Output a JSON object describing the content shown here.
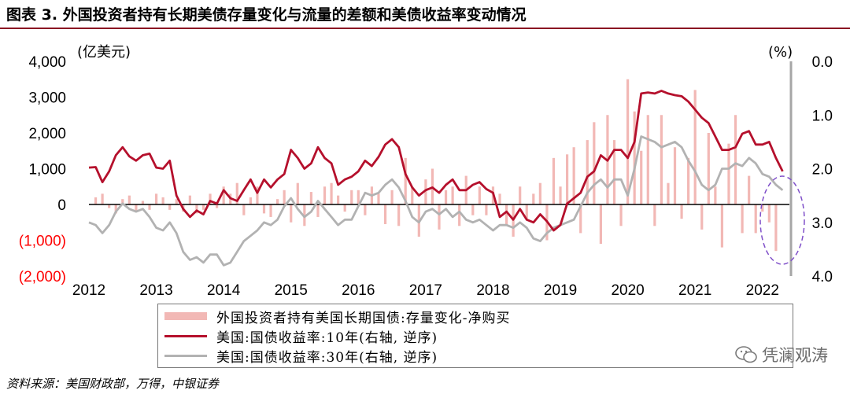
{
  "figure": {
    "title": "图表 3. 外国投资者持有长期美债存量变化与流量的差额和美债收益率变动情况",
    "source": "资料来源：美国财政部，万得，中银证券",
    "watermark": "凭澜观涛"
  },
  "colors": {
    "bars": "#f2b8b5",
    "line_10y": "#b5102c",
    "line_30y": "#b2b2b2",
    "title_rule": "#8a0f22",
    "negative_tick": "#ff0000",
    "right_axis": "#a6a6a6",
    "ellipse": "#7f4fc9"
  },
  "chart_data": {
    "type": "bar",
    "left_axis": {
      "unit_label": "(亿美元)",
      "ylim": [
        -2000,
        4000
      ],
      "ticks": [
        {
          "value": 4000,
          "label": "4,000"
        },
        {
          "value": 3000,
          "label": "3,000"
        },
        {
          "value": 2000,
          "label": "2,000"
        },
        {
          "value": 1000,
          "label": "1,000"
        },
        {
          "value": 0,
          "label": "0"
        },
        {
          "value": -1000,
          "label": "(1,000)"
        },
        {
          "value": -2000,
          "label": "(2,000)"
        }
      ]
    },
    "right_axis": {
      "unit_label": "(%)",
      "inverted": true,
      "ylim": [
        0.0,
        4.0
      ],
      "ticks": [
        {
          "value": 0.0,
          "label": "0.0"
        },
        {
          "value": 1.0,
          "label": "1.0"
        },
        {
          "value": 2.0,
          "label": "2.0"
        },
        {
          "value": 3.0,
          "label": "3.0"
        },
        {
          "value": 4.0,
          "label": "4.0"
        }
      ]
    },
    "x_axis": {
      "range": [
        2012.0,
        2022.4
      ],
      "tick_labels": [
        "2012",
        "2013",
        "2014",
        "2015",
        "2016",
        "2017",
        "2018",
        "2019",
        "2020",
        "2021",
        "2022"
      ]
    },
    "legend": [
      "外国投资者持有美国长期国债:存量变化-净购买",
      "美国:国债收益率:10年(右轴, 逆序)",
      "美国:国债收益率:30年(右轴, 逆序)"
    ],
    "series": [
      {
        "name": "外国投资者持有美国长期国债:存量变化-净购买",
        "type": "bar",
        "axis": "left",
        "x": [
          2012.1,
          2012.2,
          2012.3,
          2012.4,
          2012.5,
          2012.6,
          2012.7,
          2012.8,
          2012.9,
          2013.0,
          2013.1,
          2013.2,
          2013.3,
          2013.4,
          2013.5,
          2013.6,
          2013.7,
          2013.8,
          2013.9,
          2014.0,
          2014.1,
          2014.2,
          2014.3,
          2014.4,
          2014.5,
          2014.6,
          2014.7,
          2014.8,
          2014.9,
          2015.0,
          2015.1,
          2015.2,
          2015.3,
          2015.4,
          2015.5,
          2015.6,
          2015.7,
          2015.8,
          2015.9,
          2016.0,
          2016.1,
          2016.2,
          2016.3,
          2016.4,
          2016.5,
          2016.6,
          2016.7,
          2016.8,
          2016.9,
          2017.0,
          2017.1,
          2017.2,
          2017.3,
          2017.4,
          2017.5,
          2017.6,
          2017.7,
          2017.8,
          2017.9,
          2018.0,
          2018.1,
          2018.2,
          2018.3,
          2018.4,
          2018.5,
          2018.6,
          2018.7,
          2018.8,
          2018.9,
          2019.0,
          2019.1,
          2019.2,
          2019.3,
          2019.4,
          2019.5,
          2019.6,
          2019.7,
          2019.8,
          2019.9,
          2020.0,
          2020.1,
          2020.2,
          2020.3,
          2020.4,
          2020.5,
          2020.6,
          2020.7,
          2020.8,
          2020.9,
          2021.0,
          2021.1,
          2021.2,
          2021.3,
          2021.4,
          2021.5,
          2021.6,
          2021.7,
          2021.8,
          2021.9,
          2022.0,
          2022.1,
          2022.2
        ],
        "values": [
          200,
          300,
          -100,
          -250,
          150,
          250,
          -200,
          100,
          -150,
          300,
          200,
          -150,
          150,
          -200,
          250,
          -250,
          -150,
          300,
          -100,
          500,
          300,
          600,
          -300,
          200,
          500,
          -250,
          -350,
          150,
          400,
          -500,
          600,
          -600,
          350,
          -350,
          500,
          600,
          250,
          -200,
          400,
          400,
          -300,
          500,
          300,
          -550,
          400,
          -600,
          1300,
          500,
          -900,
          700,
          1000,
          -700,
          400,
          500,
          -600,
          800,
          -300,
          500,
          -300,
          500,
          300,
          -600,
          -900,
          500,
          -400,
          300,
          600,
          -1000,
          1300,
          500,
          1400,
          1600,
          -800,
          1800,
          2300,
          -1100,
          2500,
          1800,
          -600,
          3500,
          2600,
          1500,
          2500,
          -600,
          2500,
          600,
          1600,
          -400,
          1300,
          3200,
          -700,
          2000,
          500,
          -1200,
          1700,
          2500,
          -800,
          800,
          -800,
          -200,
          -500,
          -1300
        ]
      },
      {
        "name": "美国:国债收益率:10年(右轴, 逆序)",
        "type": "line",
        "axis": "right",
        "x": [
          2012.0,
          2012.1,
          2012.2,
          2012.3,
          2012.4,
          2012.5,
          2012.6,
          2012.7,
          2012.8,
          2012.9,
          2013.0,
          2013.1,
          2013.2,
          2013.3,
          2013.4,
          2013.5,
          2013.6,
          2013.7,
          2013.8,
          2013.9,
          2014.0,
          2014.1,
          2014.2,
          2014.3,
          2014.4,
          2014.5,
          2014.6,
          2014.7,
          2014.8,
          2014.9,
          2015.0,
          2015.1,
          2015.2,
          2015.3,
          2015.4,
          2015.5,
          2015.6,
          2015.7,
          2015.8,
          2015.9,
          2016.0,
          2016.1,
          2016.2,
          2016.3,
          2016.4,
          2016.5,
          2016.6,
          2016.7,
          2016.8,
          2016.9,
          2017.0,
          2017.1,
          2017.2,
          2017.3,
          2017.4,
          2017.5,
          2017.6,
          2017.7,
          2017.8,
          2017.9,
          2018.0,
          2018.1,
          2018.2,
          2018.3,
          2018.4,
          2018.5,
          2018.6,
          2018.7,
          2018.8,
          2018.9,
          2019.0,
          2019.1,
          2019.2,
          2019.3,
          2019.4,
          2019.5,
          2019.6,
          2019.7,
          2019.8,
          2019.9,
          2020.0,
          2020.1,
          2020.2,
          2020.3,
          2020.4,
          2020.5,
          2020.6,
          2020.7,
          2020.8,
          2020.9,
          2021.0,
          2021.1,
          2021.2,
          2021.3,
          2021.4,
          2021.5,
          2021.6,
          2021.7,
          2021.8,
          2021.9,
          2022.0,
          2022.1,
          2022.2,
          2022.3
        ],
        "values": [
          1.98,
          1.97,
          2.25,
          2.05,
          1.75,
          1.6,
          1.77,
          1.85,
          1.75,
          1.72,
          1.98,
          2.0,
          1.85,
          2.5,
          2.75,
          2.9,
          2.78,
          2.85,
          2.6,
          2.65,
          2.4,
          2.55,
          2.6,
          2.4,
          2.2,
          2.45,
          2.2,
          2.35,
          2.2,
          2.1,
          1.65,
          1.8,
          2.0,
          1.9,
          1.6,
          1.8,
          1.9,
          2.3,
          2.2,
          2.15,
          2.05,
          1.85,
          1.95,
          1.78,
          1.55,
          1.45,
          1.6,
          2.1,
          2.35,
          2.5,
          2.4,
          2.35,
          2.45,
          2.3,
          2.2,
          2.4,
          2.4,
          2.3,
          2.25,
          2.38,
          2.45,
          2.9,
          2.8,
          2.95,
          2.75,
          2.95,
          3.0,
          2.85,
          2.98,
          3.15,
          3.05,
          2.65,
          2.55,
          2.45,
          2.15,
          2.05,
          1.75,
          1.85,
          1.65,
          1.65,
          1.8,
          1.5,
          0.6,
          0.58,
          0.6,
          0.55,
          0.6,
          0.63,
          0.65,
          0.75,
          0.9,
          1.05,
          1.15,
          1.4,
          1.65,
          1.65,
          1.6,
          1.35,
          1.3,
          1.55,
          1.55,
          1.5,
          1.8,
          2.05
        ]
      },
      {
        "name": "美国:国债收益率:30年(右轴, 逆序)",
        "type": "line",
        "axis": "right",
        "x": [
          2012.0,
          2012.1,
          2012.2,
          2012.3,
          2012.4,
          2012.5,
          2012.6,
          2012.7,
          2012.8,
          2012.9,
          2013.0,
          2013.1,
          2013.2,
          2013.3,
          2013.4,
          2013.5,
          2013.6,
          2013.7,
          2013.8,
          2013.9,
          2014.0,
          2014.1,
          2014.2,
          2014.3,
          2014.4,
          2014.5,
          2014.6,
          2014.7,
          2014.8,
          2014.9,
          2015.0,
          2015.1,
          2015.2,
          2015.3,
          2015.4,
          2015.5,
          2015.6,
          2015.7,
          2015.8,
          2015.9,
          2016.0,
          2016.1,
          2016.2,
          2016.3,
          2016.4,
          2016.5,
          2016.6,
          2016.7,
          2016.8,
          2016.9,
          2017.0,
          2017.1,
          2017.2,
          2017.3,
          2017.4,
          2017.5,
          2017.6,
          2017.7,
          2017.8,
          2017.9,
          2018.0,
          2018.1,
          2018.2,
          2018.3,
          2018.4,
          2018.5,
          2018.6,
          2018.7,
          2018.8,
          2018.9,
          2019.0,
          2019.1,
          2019.2,
          2019.3,
          2019.4,
          2019.5,
          2019.6,
          2019.7,
          2019.8,
          2019.9,
          2020.0,
          2020.1,
          2020.2,
          2020.3,
          2020.4,
          2020.5,
          2020.6,
          2020.7,
          2020.8,
          2020.9,
          2021.0,
          2021.1,
          2021.2,
          2021.3,
          2021.4,
          2021.5,
          2021.6,
          2021.7,
          2021.8,
          2021.9,
          2022.0,
          2022.1,
          2022.2,
          2022.3
        ],
        "values": [
          3.0,
          3.05,
          3.2,
          3.05,
          2.8,
          2.65,
          2.75,
          2.8,
          2.75,
          2.9,
          3.1,
          3.15,
          3.0,
          3.2,
          3.55,
          3.7,
          3.65,
          3.75,
          3.6,
          3.6,
          3.8,
          3.75,
          3.55,
          3.35,
          3.25,
          3.15,
          3.0,
          3.05,
          2.95,
          2.7,
          2.55,
          2.75,
          2.9,
          2.8,
          2.6,
          2.75,
          2.9,
          3.05,
          2.95,
          2.95,
          2.7,
          2.45,
          2.5,
          2.45,
          2.3,
          2.2,
          2.35,
          2.6,
          2.9,
          3.0,
          2.8,
          2.75,
          2.85,
          2.75,
          2.9,
          2.8,
          2.95,
          3.0,
          2.95,
          3.05,
          3.15,
          3.05,
          3.05,
          3.1,
          3.0,
          3.1,
          3.3,
          3.35,
          3.2,
          3.1,
          3.05,
          3.0,
          2.95,
          2.7,
          2.45,
          2.3,
          2.2,
          2.35,
          2.2,
          2.2,
          2.5,
          2.0,
          1.4,
          1.45,
          1.5,
          1.6,
          1.55,
          1.5,
          1.6,
          1.85,
          2.05,
          2.3,
          2.4,
          2.3,
          2.0,
          2.0,
          1.9,
          1.95,
          1.8,
          1.9,
          2.1,
          2.15,
          2.3,
          2.4
        ]
      }
    ]
  }
}
